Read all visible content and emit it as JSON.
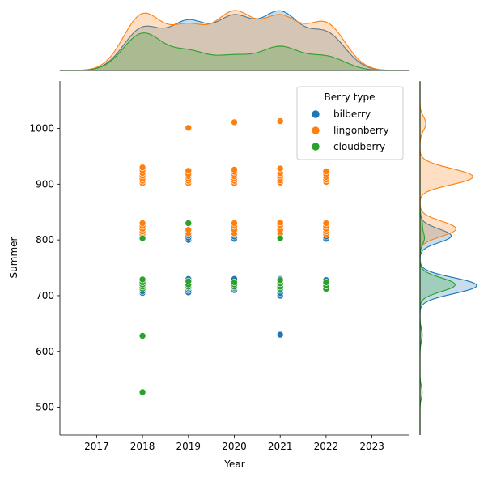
{
  "chart_data": {
    "type": "scatter",
    "xlabel": "Year",
    "ylabel": "Summer",
    "xlim": [
      2016.2,
      2023.8
    ],
    "ylim": [
      450,
      1085
    ],
    "x_ticks": [
      2017,
      2018,
      2019,
      2020,
      2021,
      2022,
      2023
    ],
    "y_ticks": [
      500,
      600,
      700,
      800,
      900,
      1000
    ],
    "grid": false,
    "legend": {
      "title": "Berry type",
      "placement": "top-right"
    },
    "series": [
      {
        "name": "bilberry",
        "color": "#1f77b4",
        "points": [
          [
            2018,
            705
          ],
          [
            2018,
            708
          ],
          [
            2018,
            712
          ],
          [
            2018,
            716
          ],
          [
            2018,
            720
          ],
          [
            2018,
            724
          ],
          [
            2018,
            728
          ],
          [
            2018,
            803
          ],
          [
            2018,
            807
          ],
          [
            2019,
            706
          ],
          [
            2019,
            710
          ],
          [
            2019,
            714
          ],
          [
            2019,
            718
          ],
          [
            2019,
            722
          ],
          [
            2019,
            726
          ],
          [
            2019,
            730
          ],
          [
            2019,
            800
          ],
          [
            2019,
            804
          ],
          [
            2019,
            808
          ],
          [
            2020,
            710
          ],
          [
            2020,
            714
          ],
          [
            2020,
            718
          ],
          [
            2020,
            722
          ],
          [
            2020,
            726
          ],
          [
            2020,
            730
          ],
          [
            2020,
            802
          ],
          [
            2020,
            806
          ],
          [
            2020,
            810
          ],
          [
            2020,
            815
          ],
          [
            2020,
            820
          ],
          [
            2021,
            700
          ],
          [
            2021,
            705
          ],
          [
            2021,
            710
          ],
          [
            2021,
            714
          ],
          [
            2021,
            718
          ],
          [
            2021,
            722
          ],
          [
            2021,
            726
          ],
          [
            2021,
            730
          ],
          [
            2021,
            805
          ],
          [
            2021,
            810
          ],
          [
            2021,
            816
          ],
          [
            2021,
            630
          ],
          [
            2022,
            712
          ],
          [
            2022,
            716
          ],
          [
            2022,
            720
          ],
          [
            2022,
            724
          ],
          [
            2022,
            728
          ],
          [
            2022,
            802
          ],
          [
            2022,
            806
          ],
          [
            2022,
            810
          ]
        ]
      },
      {
        "name": "lingonberry",
        "color": "#ff7f0e",
        "points": [
          [
            2018,
            810
          ],
          [
            2018,
            815
          ],
          [
            2018,
            820
          ],
          [
            2018,
            825
          ],
          [
            2018,
            830
          ],
          [
            2018,
            902
          ],
          [
            2018,
            906
          ],
          [
            2018,
            910
          ],
          [
            2018,
            915
          ],
          [
            2018,
            920
          ],
          [
            2018,
            925
          ],
          [
            2018,
            930
          ],
          [
            2019,
            812
          ],
          [
            2019,
            818
          ],
          [
            2019,
            902
          ],
          [
            2019,
            906
          ],
          [
            2019,
            910
          ],
          [
            2019,
            914
          ],
          [
            2019,
            918
          ],
          [
            2019,
            924
          ],
          [
            2019,
            1001
          ],
          [
            2020,
            812
          ],
          [
            2020,
            818
          ],
          [
            2020,
            825
          ],
          [
            2020,
            830
          ],
          [
            2020,
            902
          ],
          [
            2020,
            906
          ],
          [
            2020,
            910
          ],
          [
            2020,
            914
          ],
          [
            2020,
            918
          ],
          [
            2020,
            922
          ],
          [
            2020,
            926
          ],
          [
            2020,
            1011
          ],
          [
            2021,
            812
          ],
          [
            2021,
            818
          ],
          [
            2021,
            826
          ],
          [
            2021,
            831
          ],
          [
            2021,
            903
          ],
          [
            2021,
            907
          ],
          [
            2021,
            911
          ],
          [
            2021,
            915
          ],
          [
            2021,
            920
          ],
          [
            2021,
            928
          ],
          [
            2021,
            1013
          ],
          [
            2022,
            810
          ],
          [
            2022,
            815
          ],
          [
            2022,
            820
          ],
          [
            2022,
            825
          ],
          [
            2022,
            830
          ],
          [
            2022,
            904
          ],
          [
            2022,
            908
          ],
          [
            2022,
            913
          ],
          [
            2022,
            918
          ],
          [
            2022,
            923
          ]
        ]
      },
      {
        "name": "cloudberry",
        "color": "#2ca02c",
        "points": [
          [
            2018,
            712
          ],
          [
            2018,
            716
          ],
          [
            2018,
            720
          ],
          [
            2018,
            724
          ],
          [
            2018,
            729
          ],
          [
            2018,
            803
          ],
          [
            2018,
            628
          ],
          [
            2018,
            527
          ],
          [
            2019,
            716
          ],
          [
            2019,
            720
          ],
          [
            2019,
            726
          ],
          [
            2019,
            830
          ],
          [
            2020,
            716
          ],
          [
            2020,
            720
          ],
          [
            2020,
            724
          ],
          [
            2021,
            712
          ],
          [
            2021,
            716
          ],
          [
            2021,
            722
          ],
          [
            2021,
            728
          ],
          [
            2021,
            803
          ],
          [
            2022,
            712
          ],
          [
            2022,
            718
          ],
          [
            2022,
            724
          ]
        ]
      }
    ],
    "marginal_x": {
      "type": "kde",
      "series": [
        {
          "name": "bilberry",
          "color": "#1f77b4"
        },
        {
          "name": "lingonberry",
          "color": "#ff7f0e"
        },
        {
          "name": "cloudberry",
          "color": "#2ca02c"
        }
      ]
    },
    "marginal_y": {
      "type": "kde",
      "series": [
        {
          "name": "bilberry",
          "color": "#1f77b4"
        },
        {
          "name": "lingonberry",
          "color": "#ff7f0e"
        },
        {
          "name": "cloudberry",
          "color": "#2ca02c"
        }
      ]
    }
  }
}
